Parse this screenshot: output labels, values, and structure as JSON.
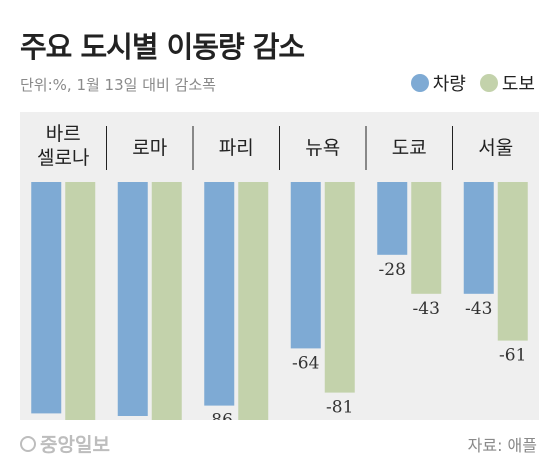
{
  "title": "주요 도시별 이동량 감소",
  "subtitle": "단위:%, 1월 13일 대비 감소폭",
  "legend": [
    {
      "label": "차량",
      "color": "#7eaad4"
    },
    {
      "label": "도보",
      "color": "#c3d2ab"
    }
  ],
  "footer": {
    "logo": "중앙일보",
    "source": "자료: 애플"
  },
  "colors": {
    "panel": "#efefef",
    "divider": "#222222",
    "car": "#7eaad4",
    "walk": "#c3d2ab"
  },
  "chart_data": {
    "type": "bar",
    "categories": [
      [
        "바르",
        "셀로나"
      ],
      [
        "로마"
      ],
      [
        "파리"
      ],
      [
        "뉴욕"
      ],
      [
        "도쿄"
      ],
      [
        "서울"
      ]
    ],
    "series": [
      {
        "name": "차량",
        "values": [
          -89,
          -90,
          -86,
          -64,
          -28,
          -43
        ]
      },
      {
        "name": "도보",
        "values": [
          -96,
          -94,
          -92,
          -81,
          -43,
          -61
        ]
      }
    ],
    "ylim": [
      -100,
      0
    ],
    "title": "주요 도시별 이동량 감소",
    "xlabel": "",
    "ylabel": ""
  }
}
